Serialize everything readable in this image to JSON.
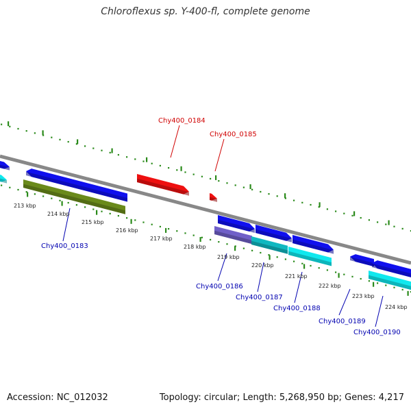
{
  "title": "Chloroflexus sp. Y-400-fl, complete genome",
  "footer": {
    "accession": "Accession: NC_012032",
    "summary": "Topology: circular; Length: 5,268,950 bp; Genes: 4,217"
  },
  "colors": {
    "backbone": "#888888",
    "ruler": "#2a8a1a",
    "gene_label_blue": "#0000b0",
    "gene_label_red": "#d00000",
    "blue": "#1010ee",
    "cyan": "#10e8ee",
    "olive": "#6a8a1a",
    "red": "#ee1010",
    "purple": "#7060c8",
    "teal": "#10b8c0"
  },
  "kbp_labels": [
    "213 kbp",
    "214 kbp",
    "215 kbp",
    "216 kbp",
    "217 kbp",
    "218 kbp",
    "219 kbp",
    "220 kbp",
    "221 kbp",
    "222 kbp",
    "223 kbp",
    "224 kbp"
  ],
  "gene_labels": [
    {
      "id": "Chy400_0183",
      "color": "blue"
    },
    {
      "id": "Chy400_0184",
      "color": "red"
    },
    {
      "id": "Chy400_0185",
      "color": "red"
    },
    {
      "id": "Chy400_0186",
      "color": "blue"
    },
    {
      "id": "Chy400_0187",
      "color": "blue"
    },
    {
      "id": "Chy400_0188",
      "color": "blue"
    },
    {
      "id": "Chy400_0189",
      "color": "blue"
    },
    {
      "id": "Chy400_0190",
      "color": "blue"
    }
  ]
}
